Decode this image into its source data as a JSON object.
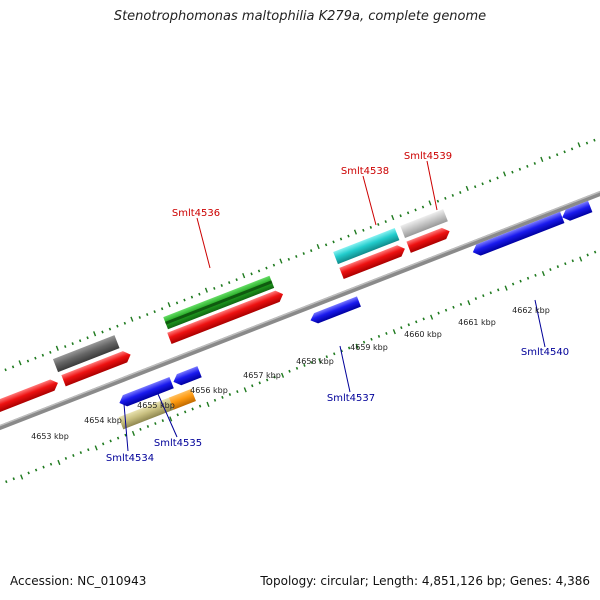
{
  "title": "Stenotrophomonas maltophilia K279a, complete genome",
  "footer": {
    "accession": "Accession: NC_010943",
    "summary": "Topology: circular; Length: 4,851,126 bp; Genes: 4,386"
  },
  "ticks": [
    {
      "label": "4653 kbp"
    },
    {
      "label": "4654 kbp"
    },
    {
      "label": "4655 kbp"
    },
    {
      "label": "4656 kbp"
    },
    {
      "label": "4657 kbp"
    },
    {
      "label": "4658 kbp"
    },
    {
      "label": "4659 kbp"
    },
    {
      "label": "4660 kbp"
    },
    {
      "label": "4661 kbp"
    },
    {
      "label": "4662 kbp"
    }
  ],
  "gene_labels": [
    {
      "label": "Smlt4536",
      "strand": "forward",
      "color": "#cc0000"
    },
    {
      "label": "Smlt4538",
      "strand": "forward",
      "color": "#cc0000"
    },
    {
      "label": "Smlt4539",
      "strand": "forward",
      "color": "#cc0000"
    },
    {
      "label": "Smlt4534",
      "strand": "reverse",
      "color": "#000099"
    },
    {
      "label": "Smlt4535",
      "strand": "reverse",
      "color": "#000099"
    },
    {
      "label": "Smlt4537",
      "strand": "reverse",
      "color": "#000099"
    },
    {
      "label": "Smlt4540",
      "strand": "reverse",
      "color": "#000099"
    }
  ],
  "colors": {
    "backbone": "#8a8a8a",
    "forward_cds": "#ee1111",
    "reverse_cds": "#1a1aee",
    "tick": "#1f7a1f"
  }
}
